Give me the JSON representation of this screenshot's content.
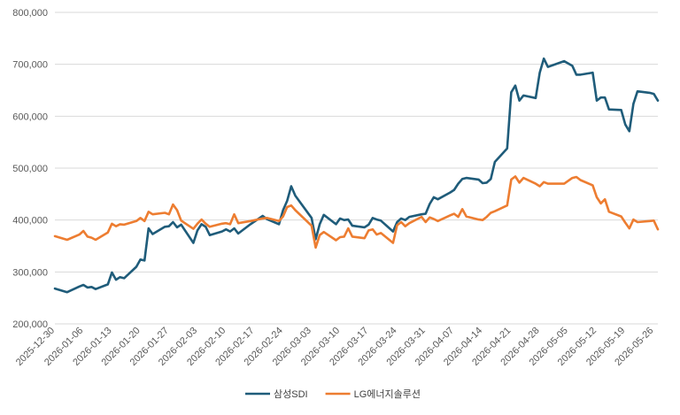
{
  "chart_data": {
    "type": "line",
    "title": "",
    "xlabel": "",
    "ylabel": "",
    "ylim": [
      200000,
      800000
    ],
    "y_ticks": [
      200000,
      300000,
      400000,
      500000,
      600000,
      700000,
      800000
    ],
    "y_tick_labels": [
      "200,000",
      "300,000",
      "400,000",
      "500,000",
      "600,000",
      "700,000",
      "800,000"
    ],
    "x_start": "2025-12-30",
    "x_end": "2026-05-27",
    "x_ticks": [
      "2025-12-30",
      "2026-01-06",
      "2026-01-13",
      "2026-01-20",
      "2026-01-27",
      "2026-02-03",
      "2026-02-10",
      "2026-02-17",
      "2026-02-24",
      "2026-03-03",
      "2026-03-10",
      "2026-03-17",
      "2026-03-24",
      "2026-03-31",
      "2026-04-07",
      "2026-04-14",
      "2026-04-21",
      "2026-04-28",
      "2026-05-05",
      "2026-05-12",
      "2026-05-19",
      "2026-05-26"
    ],
    "grid": true,
    "legend_position": "bottom",
    "series": [
      {
        "name": "삼성SDI",
        "color": "#1f5c7a",
        "points": [
          [
            "2025-12-30",
            268000
          ],
          [
            "2026-01-02",
            261000
          ],
          [
            "2026-01-05",
            272000
          ],
          [
            "2026-01-06",
            275000
          ],
          [
            "2026-01-07",
            270000
          ],
          [
            "2026-01-08",
            271000
          ],
          [
            "2026-01-09",
            267000
          ],
          [
            "2026-01-12",
            276000
          ],
          [
            "2026-01-13",
            299000
          ],
          [
            "2026-01-14",
            285000
          ],
          [
            "2026-01-15",
            290000
          ],
          [
            "2026-01-16",
            288000
          ],
          [
            "2026-01-19",
            310000
          ],
          [
            "2026-01-20",
            324000
          ],
          [
            "2026-01-21",
            322000
          ],
          [
            "2026-01-22",
            384000
          ],
          [
            "2026-01-23",
            373000
          ],
          [
            "2026-01-26",
            387000
          ],
          [
            "2026-01-27",
            388000
          ],
          [
            "2026-01-28",
            396000
          ],
          [
            "2026-01-29",
            386000
          ],
          [
            "2026-01-30",
            391000
          ],
          [
            "2026-02-02",
            356000
          ],
          [
            "2026-02-03",
            380000
          ],
          [
            "2026-02-04",
            392000
          ],
          [
            "2026-02-05",
            387000
          ],
          [
            "2026-02-06",
            371000
          ],
          [
            "2026-02-09",
            378000
          ],
          [
            "2026-02-10",
            382000
          ],
          [
            "2026-02-11",
            378000
          ],
          [
            "2026-02-12",
            384000
          ],
          [
            "2026-02-13",
            374000
          ],
          [
            "2026-02-16",
            392000
          ],
          [
            "2026-02-19",
            408000
          ],
          [
            "2026-02-20",
            402000
          ],
          [
            "2026-02-23",
            392000
          ],
          [
            "2026-02-24",
            419000
          ],
          [
            "2026-02-25",
            437000
          ],
          [
            "2026-02-26",
            465000
          ],
          [
            "2026-02-27",
            447000
          ],
          [
            "2026-03-03",
            404000
          ],
          [
            "2026-03-04",
            363000
          ],
          [
            "2026-03-05",
            392000
          ],
          [
            "2026-03-06",
            410000
          ],
          [
            "2026-03-09",
            392000
          ],
          [
            "2026-03-10",
            403000
          ],
          [
            "2026-03-11",
            400000
          ],
          [
            "2026-03-12",
            401000
          ],
          [
            "2026-03-13",
            389000
          ],
          [
            "2026-03-16",
            386000
          ],
          [
            "2026-03-17",
            391000
          ],
          [
            "2026-03-18",
            404000
          ],
          [
            "2026-03-19",
            401000
          ],
          [
            "2026-03-20",
            399000
          ],
          [
            "2026-03-23",
            378000
          ],
          [
            "2026-03-24",
            396000
          ],
          [
            "2026-03-25",
            403000
          ],
          [
            "2026-03-26",
            400000
          ],
          [
            "2026-03-27",
            406000
          ],
          [
            "2026-03-30",
            411000
          ],
          [
            "2026-03-31",
            412000
          ],
          [
            "2026-04-01",
            431000
          ],
          [
            "2026-04-02",
            444000
          ],
          [
            "2026-04-03",
            440000
          ],
          [
            "2026-04-06",
            453000
          ],
          [
            "2026-04-07",
            458000
          ],
          [
            "2026-04-08",
            470000
          ],
          [
            "2026-04-09",
            479000
          ],
          [
            "2026-04-10",
            481000
          ],
          [
            "2026-04-13",
            478000
          ],
          [
            "2026-04-14",
            471000
          ],
          [
            "2026-04-15",
            472000
          ],
          [
            "2026-04-16",
            479000
          ],
          [
            "2026-04-17",
            512000
          ],
          [
            "2026-04-20",
            538000
          ],
          [
            "2026-04-21",
            646000
          ],
          [
            "2026-04-22",
            659000
          ],
          [
            "2026-04-23",
            630000
          ],
          [
            "2026-04-24",
            640000
          ],
          [
            "2026-04-27",
            635000
          ],
          [
            "2026-04-28",
            684000
          ],
          [
            "2026-04-29",
            711000
          ],
          [
            "2026-04-30",
            695000
          ],
          [
            "2026-05-04",
            706000
          ],
          [
            "2026-05-06",
            697000
          ],
          [
            "2026-05-07",
            680000
          ],
          [
            "2026-05-08",
            680000
          ],
          [
            "2026-05-11",
            684000
          ],
          [
            "2026-05-12",
            630000
          ],
          [
            "2026-05-13",
            636000
          ],
          [
            "2026-05-14",
            636000
          ],
          [
            "2026-05-15",
            613000
          ],
          [
            "2026-05-18",
            612000
          ],
          [
            "2026-05-19",
            584000
          ],
          [
            "2026-05-20",
            571000
          ],
          [
            "2026-05-21",
            624000
          ],
          [
            "2026-05-22",
            648000
          ],
          [
            "2026-05-25",
            645000
          ],
          [
            "2026-05-26",
            643000
          ],
          [
            "2026-05-27",
            630000
          ]
        ]
      },
      {
        "name": "LG에너지솔루션",
        "color": "#ed7d31",
        "points": [
          [
            "2025-12-30",
            369000
          ],
          [
            "2026-01-02",
            362000
          ],
          [
            "2026-01-05",
            372000
          ],
          [
            "2026-01-06",
            379000
          ],
          [
            "2026-01-07",
            368000
          ],
          [
            "2026-01-08",
            366000
          ],
          [
            "2026-01-09",
            362000
          ],
          [
            "2026-01-12",
            376000
          ],
          [
            "2026-01-13",
            393000
          ],
          [
            "2026-01-14",
            388000
          ],
          [
            "2026-01-15",
            392000
          ],
          [
            "2026-01-16",
            391000
          ],
          [
            "2026-01-19",
            398000
          ],
          [
            "2026-01-20",
            404000
          ],
          [
            "2026-01-21",
            398000
          ],
          [
            "2026-01-22",
            416000
          ],
          [
            "2026-01-23",
            411000
          ],
          [
            "2026-01-26",
            414000
          ],
          [
            "2026-01-27",
            411000
          ],
          [
            "2026-01-28",
            430000
          ],
          [
            "2026-01-29",
            419000
          ],
          [
            "2026-01-30",
            399000
          ],
          [
            "2026-02-02",
            383000
          ],
          [
            "2026-02-03",
            393000
          ],
          [
            "2026-02-04",
            401000
          ],
          [
            "2026-02-05",
            393000
          ],
          [
            "2026-02-06",
            387000
          ],
          [
            "2026-02-09",
            393000
          ],
          [
            "2026-02-10",
            394000
          ],
          [
            "2026-02-11",
            392000
          ],
          [
            "2026-02-12",
            411000
          ],
          [
            "2026-02-13",
            394000
          ],
          [
            "2026-02-16",
            398000
          ],
          [
            "2026-02-19",
            403000
          ],
          [
            "2026-02-20",
            404000
          ],
          [
            "2026-02-23",
            398000
          ],
          [
            "2026-02-24",
            407000
          ],
          [
            "2026-02-25",
            425000
          ],
          [
            "2026-02-26",
            428000
          ],
          [
            "2026-02-27",
            419000
          ],
          [
            "2026-03-03",
            389000
          ],
          [
            "2026-03-04",
            347000
          ],
          [
            "2026-03-05",
            371000
          ],
          [
            "2026-03-06",
            377000
          ],
          [
            "2026-03-09",
            361000
          ],
          [
            "2026-03-10",
            367000
          ],
          [
            "2026-03-11",
            368000
          ],
          [
            "2026-03-12",
            384000
          ],
          [
            "2026-03-13",
            368000
          ],
          [
            "2026-03-16",
            365000
          ],
          [
            "2026-03-17",
            380000
          ],
          [
            "2026-03-18",
            382000
          ],
          [
            "2026-03-19",
            372000
          ],
          [
            "2026-03-20",
            375000
          ],
          [
            "2026-03-23",
            356000
          ],
          [
            "2026-03-24",
            390000
          ],
          [
            "2026-03-25",
            396000
          ],
          [
            "2026-03-26",
            388000
          ],
          [
            "2026-03-27",
            394000
          ],
          [
            "2026-03-30",
            406000
          ],
          [
            "2026-03-31",
            396000
          ],
          [
            "2026-04-01",
            405000
          ],
          [
            "2026-04-02",
            402000
          ],
          [
            "2026-04-03",
            398000
          ],
          [
            "2026-04-06",
            409000
          ],
          [
            "2026-04-07",
            412000
          ],
          [
            "2026-04-08",
            406000
          ],
          [
            "2026-04-09",
            421000
          ],
          [
            "2026-04-10",
            407000
          ],
          [
            "2026-04-13",
            401000
          ],
          [
            "2026-04-14",
            400000
          ],
          [
            "2026-04-15",
            406000
          ],
          [
            "2026-04-16",
            414000
          ],
          [
            "2026-04-17",
            417000
          ],
          [
            "2026-04-20",
            428000
          ],
          [
            "2026-04-21",
            478000
          ],
          [
            "2026-04-22",
            484000
          ],
          [
            "2026-04-23",
            472000
          ],
          [
            "2026-04-24",
            481000
          ],
          [
            "2026-04-27",
            470000
          ],
          [
            "2026-04-28",
            465000
          ],
          [
            "2026-04-29",
            473000
          ],
          [
            "2026-04-30",
            470000
          ],
          [
            "2026-05-04",
            470000
          ],
          [
            "2026-05-06",
            481000
          ],
          [
            "2026-05-07",
            483000
          ],
          [
            "2026-05-08",
            477000
          ],
          [
            "2026-05-11",
            467000
          ],
          [
            "2026-05-12",
            444000
          ],
          [
            "2026-05-13",
            432000
          ],
          [
            "2026-05-14",
            440000
          ],
          [
            "2026-05-15",
            416000
          ],
          [
            "2026-05-18",
            407000
          ],
          [
            "2026-05-19",
            395000
          ],
          [
            "2026-05-20",
            384000
          ],
          [
            "2026-05-21",
            401000
          ],
          [
            "2026-05-22",
            396000
          ],
          [
            "2026-05-25",
            398000
          ],
          [
            "2026-05-26",
            399000
          ],
          [
            "2026-05-27",
            382000
          ]
        ]
      }
    ]
  }
}
